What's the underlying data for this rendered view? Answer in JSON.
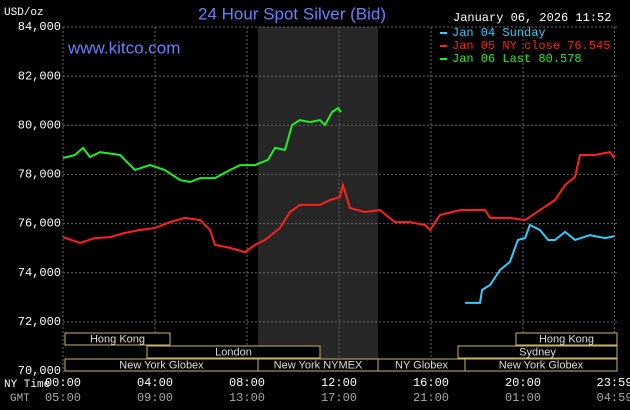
{
  "chart_data": {
    "type": "line",
    "title": "24 Hour Spot Silver (Bid)",
    "y_label": "USD/oz",
    "timestamp": "January 06, 2026 11:52",
    "watermark": "www.kitco.com",
    "x_label": "NY Time",
    "x2_label": "GMT",
    "xlim": [
      0,
      24
    ],
    "ylim": [
      70,
      84
    ],
    "grid": true,
    "xticks": [
      {
        "value": 0,
        "label": "00:00"
      },
      {
        "value": 4,
        "label": "04:00"
      },
      {
        "value": 8,
        "label": "08:00"
      },
      {
        "value": 12,
        "label": "12:00"
      },
      {
        "value": 16,
        "label": "16:00"
      },
      {
        "value": 20,
        "label": "20:00"
      },
      {
        "value": 23.98,
        "label": "23:59"
      }
    ],
    "x2ticks": [
      {
        "value": 0,
        "label": "05:00"
      },
      {
        "value": 4,
        "label": "09:00"
      },
      {
        "value": 8,
        "label": "13:00"
      },
      {
        "value": 12,
        "label": "17:00"
      },
      {
        "value": 16,
        "label": "21:00"
      },
      {
        "value": 20,
        "label": "01:00"
      },
      {
        "value": 23.98,
        "label": "04:59"
      }
    ],
    "yticks": [
      {
        "value": 70,
        "label": "70,000"
      },
      {
        "value": 72,
        "label": "72,000"
      },
      {
        "value": 74,
        "label": "74,000"
      },
      {
        "value": 76,
        "label": "76,000"
      },
      {
        "value": 78,
        "label": "78,000"
      },
      {
        "value": 80,
        "label": "80,000"
      },
      {
        "value": 82,
        "label": "82,000"
      },
      {
        "value": 84,
        "label": "84,000"
      }
    ],
    "sessions": [
      "Hong Kong",
      "Hong Kong",
      "London",
      "Sydney",
      "New York Globex",
      "New York NYMEX",
      "NY Globex",
      "New York Globex"
    ],
    "series": [
      {
        "name": "Jan 04 Sunday",
        "color": "#33ccff",
        "x": [
          17.48,
          18.13,
          18.22,
          18.57,
          19.0,
          19.43,
          19.78,
          20.09,
          20.3,
          20.74,
          21.09,
          21.39,
          21.83,
          22.26,
          22.91,
          23.57,
          23.98
        ],
        "values": [
          72.77,
          72.77,
          73.3,
          73.5,
          74.11,
          74.44,
          75.33,
          75.41,
          75.94,
          75.74,
          75.33,
          75.33,
          75.66,
          75.33,
          75.53,
          75.41,
          75.49
        ]
      },
      {
        "name": "Jan 05 NY close 76.545",
        "color": "#ff2020",
        "x": [
          0,
          0.74,
          1.39,
          2.04,
          2.7,
          3.35,
          4,
          4.65,
          5.3,
          5.96,
          6.39,
          6.61,
          7.26,
          7.91,
          8.35,
          8.78,
          9.43,
          9.87,
          10.3,
          11.17,
          11.61,
          12.04,
          12.17,
          12.48,
          13.13,
          13.78,
          14.43,
          15.09,
          15.74,
          15.96,
          16.39,
          17.26,
          18.35,
          18.57,
          19.43,
          20.09,
          20.74,
          21.39,
          21.83,
          22.26,
          22.48,
          23.13,
          23.78,
          23.98
        ],
        "values": [
          75.45,
          75.21,
          75.41,
          75.45,
          75.62,
          75.74,
          75.82,
          76.06,
          76.23,
          76.14,
          75.74,
          75.13,
          75.01,
          74.84,
          75.13,
          75.33,
          75.82,
          76.47,
          76.76,
          76.76,
          76.96,
          77.08,
          77.57,
          76.63,
          76.47,
          76.55,
          76.06,
          76.06,
          75.94,
          75.74,
          76.35,
          76.55,
          76.55,
          76.23,
          76.23,
          76.14,
          76.55,
          76.96,
          77.57,
          77.9,
          78.79,
          78.79,
          78.91,
          78.67
        ]
      },
      {
        "name": "Jan 06 Last 80.578",
        "color": "#22ee22",
        "x": [
          0,
          0.52,
          0.87,
          1.17,
          1.61,
          2.48,
          3.13,
          3.78,
          4.43,
          5.09,
          5.52,
          5.96,
          6.61,
          7.26,
          7.7,
          8.35,
          8.91,
          9.22,
          9.65,
          9.96,
          10.3,
          10.74,
          11.17,
          11.39,
          11.7,
          11.96,
          12.09
        ],
        "values": [
          78.67,
          78.79,
          79.08,
          78.71,
          78.91,
          78.79,
          78.18,
          78.38,
          78.18,
          77.77,
          77.69,
          77.85,
          77.85,
          78.18,
          78.38,
          78.38,
          78.59,
          79.08,
          79.0,
          80.01,
          80.21,
          80.13,
          80.21,
          80.01,
          80.54,
          80.7,
          80.54
        ]
      }
    ]
  }
}
